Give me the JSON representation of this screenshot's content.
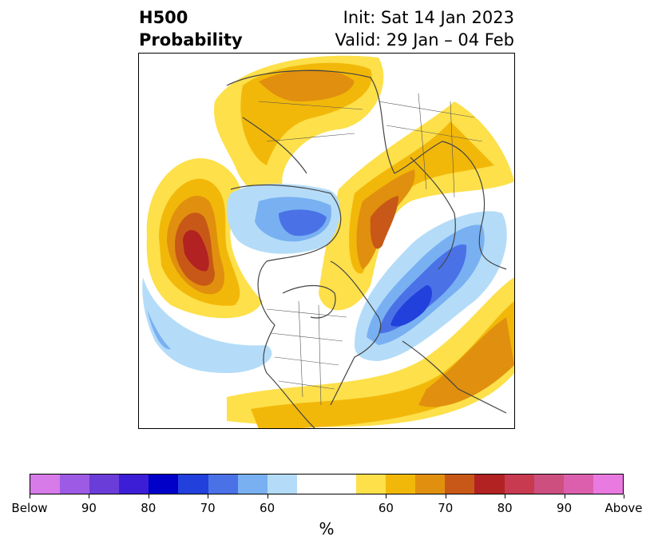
{
  "title": {
    "left_line1": "H500",
    "left_line2": "Probability",
    "right_line1": "Init: Sat 14 Jan 2023",
    "right_line2": "Valid: 29 Jan – 04 Feb"
  },
  "colorbar": {
    "unit_label": "%",
    "tick_labels": [
      "Below",
      "90",
      "80",
      "70",
      "60",
      "60",
      "70",
      "80",
      "90",
      "Above"
    ],
    "colors": [
      "#d67be8",
      "#9d5ae4",
      "#6a3dd8",
      "#3b1ed6",
      "#0000c8",
      "#2240dc",
      "#4a72e6",
      "#78b0f2",
      "#b4dcf8",
      "#ffffff",
      "#ffffff",
      "#fde04a",
      "#f2b809",
      "#e0900e",
      "#c85817",
      "#b22222",
      "#c83a50",
      "#cc4f80",
      "#db5fac",
      "#e97ae0"
    ]
  },
  "map": {
    "projection": "north polar stereographic",
    "fill_colors": {
      "above_55": "#fde04a",
      "above_60": "#f2b809",
      "above_65": "#e0900e",
      "above_70": "#c85817",
      "above_75": "#b22222",
      "below_55": "#b4dcf8",
      "below_60": "#78b0f2",
      "below_65": "#4a72e6",
      "below_70": "#2240dc"
    },
    "outline_color": "#444444"
  }
}
